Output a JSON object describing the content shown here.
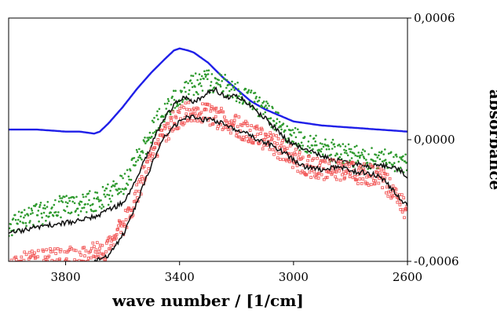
{
  "chart_data": {
    "type": "scatter",
    "title": "",
    "xlabel": "wave number / [1/cm]",
    "ylabel": "absorbance",
    "xlim": [
      4000,
      2600
    ],
    "x_reversed": true,
    "ylim": [
      -0.0006,
      0.0006
    ],
    "x_ticks": [
      {
        "value": 3800,
        "label": "3800"
      },
      {
        "value": 3400,
        "label": "3400"
      },
      {
        "value": 3000,
        "label": "3000"
      },
      {
        "value": 2600,
        "label": "2600"
      }
    ],
    "y_ticks": [
      {
        "value": 0.0006,
        "label": "0,0006"
      },
      {
        "value": 0.0,
        "label": "0,0000"
      },
      {
        "value": -0.0006,
        "label": "-0,0006"
      }
    ],
    "y_axis_side": "right",
    "grid": false,
    "legend": "none",
    "series": [
      {
        "kind": "line",
        "color": "#1f1fe8",
        "points": [
          [
            4000,
            5e-05
          ],
          [
            3900,
            5e-05
          ],
          [
            3800,
            4e-05
          ],
          [
            3750,
            4e-05
          ],
          [
            3700,
            3e-05
          ],
          [
            3680,
            4e-05
          ],
          [
            3650,
            8e-05
          ],
          [
            3600,
            0.00016
          ],
          [
            3550,
            0.00025
          ],
          [
            3500,
            0.00033
          ],
          [
            3450,
            0.0004
          ],
          [
            3420,
            0.00044
          ],
          [
            3400,
            0.00045
          ],
          [
            3370,
            0.00044
          ],
          [
            3350,
            0.00043
          ],
          [
            3300,
            0.00038
          ],
          [
            3250,
            0.00031
          ],
          [
            3200,
            0.00025
          ],
          [
            3150,
            0.00019
          ],
          [
            3100,
            0.00015
          ],
          [
            3050,
            0.00012
          ],
          [
            3000,
            9e-05
          ],
          [
            2950,
            8e-05
          ],
          [
            2900,
            7e-05
          ],
          [
            2800,
            6e-05
          ],
          [
            2700,
            5e-05
          ],
          [
            2600,
            4e-05
          ]
        ]
      },
      {
        "kind": "scatter",
        "marker": "dot",
        "color": "#2e9a2e",
        "points": [
          [
            4000,
            -0.00043
          ],
          [
            3950,
            -0.0004
          ],
          [
            3900,
            -0.00037
          ],
          [
            3850,
            -0.00035
          ],
          [
            3800,
            -0.00032
          ],
          [
            3750,
            -0.00032
          ],
          [
            3700,
            -0.0003
          ],
          [
            3650,
            -0.00027
          ],
          [
            3600,
            -0.00022
          ],
          [
            3575,
            -0.00017
          ],
          [
            3550,
            -0.0001
          ],
          [
            3525,
            -4e-05
          ],
          [
            3500,
            3e-05
          ],
          [
            3475,
            0.0001
          ],
          [
            3450,
            0.00015
          ],
          [
            3425,
            0.00019
          ],
          [
            3400,
            0.00022
          ],
          [
            3375,
            0.00025
          ],
          [
            3350,
            0.00027
          ],
          [
            3325,
            0.00028
          ],
          [
            3300,
            0.00029
          ],
          [
            3275,
            0.00028
          ],
          [
            3250,
            0.00027
          ],
          [
            3225,
            0.00026
          ],
          [
            3200,
            0.00024
          ],
          [
            3175,
            0.00022
          ],
          [
            3150,
            0.0002
          ],
          [
            3125,
            0.00017
          ],
          [
            3100,
            0.00014
          ],
          [
            3075,
            0.00011
          ],
          [
            3050,
            8e-05
          ],
          [
            3025,
            4e-05
          ],
          [
            3000,
            1e-05
          ],
          [
            2975,
            -1e-05
          ],
          [
            2950,
            -2e-05
          ],
          [
            2925,
            -3e-05
          ],
          [
            2900,
            -4e-05
          ],
          [
            2875,
            -5e-05
          ],
          [
            2850,
            -6e-05
          ],
          [
            2825,
            -7e-05
          ],
          [
            2800,
            -8e-05
          ],
          [
            2775,
            -8e-05
          ],
          [
            2750,
            -9e-05
          ],
          [
            2725,
            -9e-05
          ],
          [
            2700,
            -0.0001
          ],
          [
            2675,
            -0.0001
          ],
          [
            2650,
            -0.00011
          ],
          [
            2625,
            -0.00012
          ],
          [
            2600,
            -0.00013
          ]
        ]
      },
      {
        "kind": "line",
        "color": "#111111",
        "points": [
          [
            4000,
            -0.00046
          ],
          [
            3900,
            -0.00043
          ],
          [
            3800,
            -0.00041
          ],
          [
            3750,
            -0.0004
          ],
          [
            3700,
            -0.00038
          ],
          [
            3650,
            -0.00035
          ],
          [
            3600,
            -0.00031
          ],
          [
            3575,
            -0.00026
          ],
          [
            3550,
            -0.00018
          ],
          [
            3525,
            -0.00011
          ],
          [
            3500,
            -3e-05
          ],
          [
            3475,
            5e-05
          ],
          [
            3450,
            0.00011
          ],
          [
            3425,
            0.00016
          ],
          [
            3400,
            0.0002
          ],
          [
            3375,
            0.00021
          ],
          [
            3350,
            0.00018
          ],
          [
            3325,
            0.00021
          ],
          [
            3300,
            0.00023
          ],
          [
            3275,
            0.00025
          ],
          [
            3250,
            0.00022
          ],
          [
            3225,
            0.00021
          ],
          [
            3200,
            0.00022
          ],
          [
            3175,
            0.0002
          ],
          [
            3150,
            0.00017
          ],
          [
            3125,
            0.00013
          ],
          [
            3100,
            0.00011
          ],
          [
            3075,
            7e-05
          ],
          [
            3050,
            4e-05
          ],
          [
            3025,
            0.0
          ],
          [
            3000,
            -2e-05
          ],
          [
            2975,
            -4e-05
          ],
          [
            2950,
            -5e-05
          ],
          [
            2925,
            -6e-05
          ],
          [
            2900,
            -8e-05
          ],
          [
            2875,
            -9e-05
          ],
          [
            2850,
            -0.0001
          ],
          [
            2825,
            -0.00011
          ],
          [
            2800,
            -0.00012
          ],
          [
            2775,
            -0.00012
          ],
          [
            2750,
            -0.00013
          ],
          [
            2725,
            -0.00013
          ],
          [
            2700,
            -0.00013
          ],
          [
            2675,
            -0.00013
          ],
          [
            2650,
            -0.00014
          ],
          [
            2625,
            -0.00015
          ],
          [
            2600,
            -0.00019
          ]
        ]
      },
      {
        "kind": "scatter",
        "marker": "square",
        "color": "#f25a5a",
        "points": [
          [
            4000,
            -0.00065
          ],
          [
            3950,
            -0.00061
          ],
          [
            3900,
            -0.0006
          ],
          [
            3850,
            -0.00058
          ],
          [
            3800,
            -0.00058
          ],
          [
            3750,
            -0.00059
          ],
          [
            3700,
            -0.00056
          ],
          [
            3650,
            -0.00053
          ],
          [
            3625,
            -0.00048
          ],
          [
            3600,
            -0.00043
          ],
          [
            3575,
            -0.00036
          ],
          [
            3550,
            -0.00027
          ],
          [
            3525,
            -0.00018
          ],
          [
            3500,
            -9e-05
          ],
          [
            3475,
            -2e-05
          ],
          [
            3450,
            4e-05
          ],
          [
            3425,
            8e-05
          ],
          [
            3400,
            0.00011
          ],
          [
            3375,
            0.00013
          ],
          [
            3350,
            0.00014
          ],
          [
            3325,
            0.00013
          ],
          [
            3300,
            0.00012
          ],
          [
            3275,
            0.00011
          ],
          [
            3250,
            0.0001
          ],
          [
            3225,
            9e-05
          ],
          [
            3200,
            7e-05
          ],
          [
            3175,
            5e-05
          ],
          [
            3150,
            4e-05
          ],
          [
            3125,
            2e-05
          ],
          [
            3100,
            0.0
          ],
          [
            3075,
            -2e-05
          ],
          [
            3050,
            -4e-05
          ],
          [
            3025,
            -6e-05
          ],
          [
            3000,
            -9e-05
          ],
          [
            2975,
            -0.00011
          ],
          [
            2950,
            -0.00013
          ],
          [
            2925,
            -0.00014
          ],
          [
            2900,
            -0.00015
          ],
          [
            2875,
            -0.00015
          ],
          [
            2850,
            -0.00015
          ],
          [
            2825,
            -0.00015
          ],
          [
            2800,
            -0.00016
          ],
          [
            2775,
            -0.00017
          ],
          [
            2750,
            -0.00017
          ],
          [
            2725,
            -0.00017
          ],
          [
            2700,
            -0.00018
          ],
          [
            2675,
            -0.00021
          ],
          [
            2650,
            -0.00026
          ],
          [
            2625,
            -0.00031
          ],
          [
            2600,
            -0.00036
          ]
        ]
      },
      {
        "kind": "line",
        "color": "#111111",
        "points": [
          [
            4000,
            -0.00068
          ],
          [
            3900,
            -0.00064
          ],
          [
            3800,
            -0.00062
          ],
          [
            3750,
            -0.00063
          ],
          [
            3700,
            -0.0006
          ],
          [
            3650,
            -0.00057
          ],
          [
            3625,
            -0.00052
          ],
          [
            3600,
            -0.00047
          ],
          [
            3575,
            -0.0004
          ],
          [
            3550,
            -0.00031
          ],
          [
            3525,
            -0.00022
          ],
          [
            3500,
            -0.00013
          ],
          [
            3475,
            -5e-05
          ],
          [
            3450,
            2e-05
          ],
          [
            3425,
            6e-05
          ],
          [
            3400,
            9e-05
          ],
          [
            3375,
            0.00011
          ],
          [
            3350,
            0.00011
          ],
          [
            3325,
            0.0001
          ],
          [
            3300,
            0.0001
          ],
          [
            3275,
            9e-05
          ],
          [
            3250,
            8e-05
          ],
          [
            3225,
            7e-05
          ],
          [
            3200,
            5e-05
          ],
          [
            3175,
            4e-05
          ],
          [
            3150,
            2e-05
          ],
          [
            3125,
            0.0
          ],
          [
            3100,
            -1e-05
          ],
          [
            3075,
            -3e-05
          ],
          [
            3050,
            -5e-05
          ],
          [
            3025,
            -7e-05
          ],
          [
            3000,
            -0.0001
          ],
          [
            2975,
            -0.00012
          ],
          [
            2950,
            -0.00014
          ],
          [
            2925,
            -0.00014
          ],
          [
            2900,
            -0.00015
          ],
          [
            2875,
            -0.00014
          ],
          [
            2850,
            -0.00014
          ],
          [
            2825,
            -0.00014
          ],
          [
            2800,
            -0.00015
          ],
          [
            2775,
            -0.00016
          ],
          [
            2750,
            -0.00016
          ],
          [
            2725,
            -0.00017
          ],
          [
            2700,
            -0.00018
          ],
          [
            2675,
            -0.00021
          ],
          [
            2650,
            -0.00025
          ],
          [
            2625,
            -0.00029
          ],
          [
            2600,
            -0.00033
          ]
        ]
      }
    ]
  }
}
